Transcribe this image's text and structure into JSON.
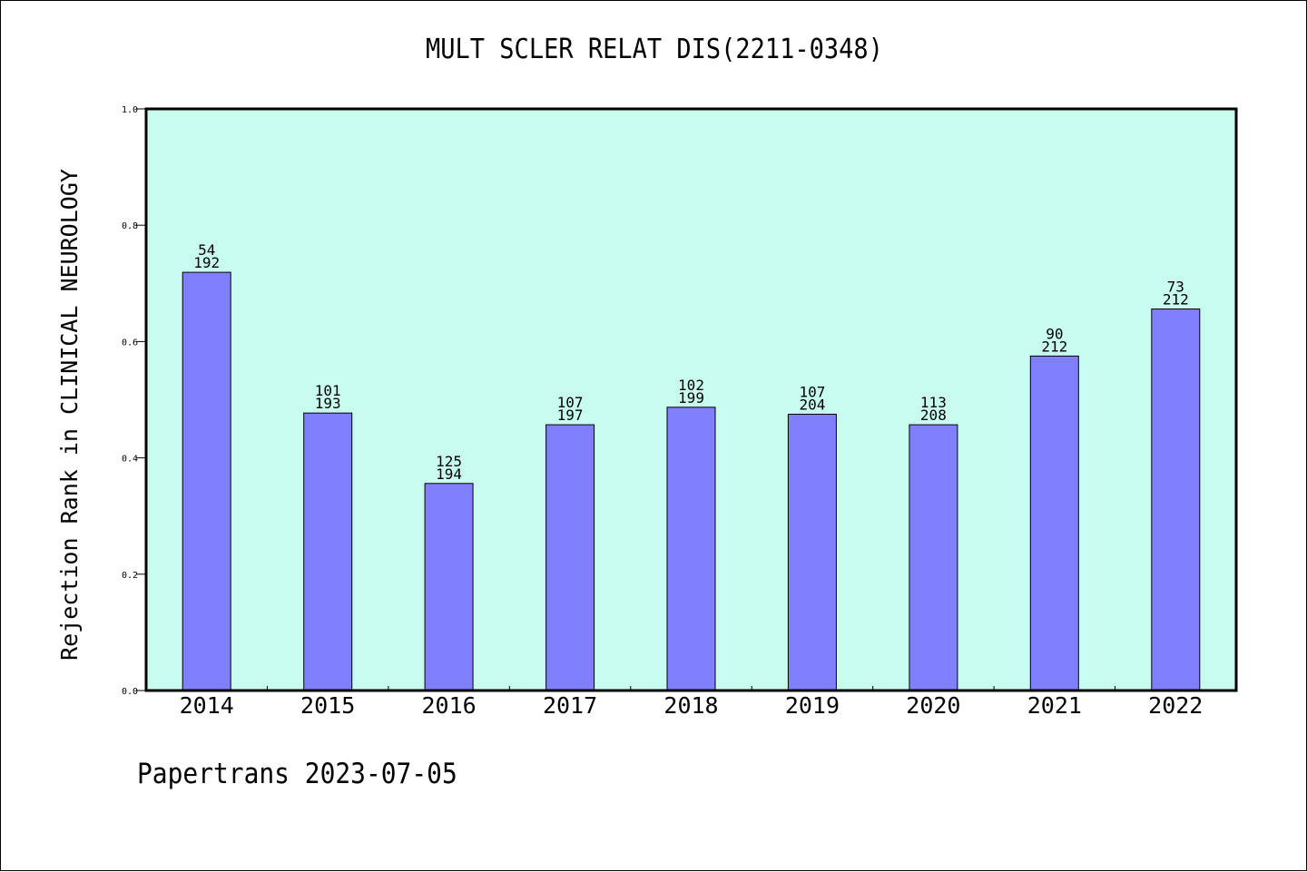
{
  "title": "MULT SCLER RELAT DIS(2211-0348)",
  "footer": "Papertrans 2023-07-05",
  "colors": {
    "plot_background": "#c8fcee",
    "bar_fill": "#8080ff",
    "bar_stroke": "#000000",
    "axis": "#000000"
  },
  "chart_data": {
    "type": "bar",
    "title": "MULT SCLER RELAT DIS(2211-0348)",
    "xlabel": "",
    "ylabel": "Rejection Rank in CLINICAL NEUROLOGY",
    "ylim": [
      0,
      1.0
    ],
    "yticks": [
      "0.0",
      "0.2",
      "0.4",
      "0.6",
      "0.8",
      "1.0"
    ],
    "grid": false,
    "categories": [
      "2014",
      "2015",
      "2016",
      "2017",
      "2018",
      "2019",
      "2020",
      "2021",
      "2022"
    ],
    "values": [
      0.719,
      0.477,
      0.356,
      0.457,
      0.487,
      0.475,
      0.457,
      0.575,
      0.656
    ],
    "labels_top": [
      "54",
      "101",
      "125",
      "107",
      "102",
      "107",
      "113",
      "90",
      "73"
    ],
    "labels_bottom": [
      "192",
      "193",
      "194",
      "197",
      "199",
      "204",
      "208",
      "212",
      "212"
    ]
  }
}
